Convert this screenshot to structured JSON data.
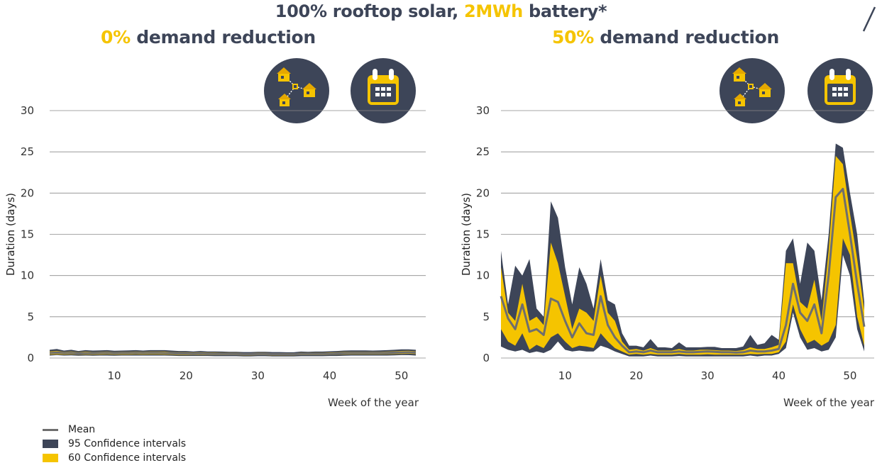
{
  "title": {
    "part1": "100% rooftop solar, ",
    "highlight": "2MWh",
    "part2": " battery*"
  },
  "colors": {
    "navy": "#3d4558",
    "yellow": "#f5c400",
    "mean": "#6e6e6e"
  },
  "icons": [
    "houses-network-icon",
    "calendar-icon"
  ],
  "legend": [
    {
      "label": "Mean",
      "kind": "line",
      "color": "#6e6e6e"
    },
    {
      "label": "95 Confidence intervals",
      "kind": "box",
      "color": "#3d4558"
    },
    {
      "label": "60 Confidence intervals",
      "kind": "box",
      "color": "#f5c400"
    }
  ],
  "chart_data": [
    {
      "type": "area",
      "subtitle_highlight": "0%",
      "subtitle_rest": " demand reduction",
      "xlabel": "Week of the year",
      "ylabel": "Duration (days)",
      "xlim": [
        1,
        52
      ],
      "ylim": [
        0,
        30
      ],
      "xticks": [
        10,
        20,
        30,
        40,
        50
      ],
      "yticks": [
        0,
        5,
        10,
        15,
        20,
        25,
        30
      ],
      "x_start": 1,
      "series": [
        {
          "name": "Mean",
          "values": [
            0.6,
            0.65,
            0.6,
            0.62,
            0.55,
            0.6,
            0.58,
            0.6,
            0.62,
            0.58,
            0.6,
            0.6,
            0.62,
            0.6,
            0.62,
            0.62,
            0.6,
            0.58,
            0.55,
            0.55,
            0.52,
            0.55,
            0.52,
            0.5,
            0.5,
            0.48,
            0.48,
            0.47,
            0.47,
            0.48,
            0.48,
            0.47,
            0.47,
            0.46,
            0.46,
            0.5,
            0.5,
            0.5,
            0.5,
            0.52,
            0.55,
            0.58,
            0.6,
            0.6,
            0.6,
            0.6,
            0.6,
            0.62,
            0.65,
            0.68,
            0.7,
            0.65
          ]
        },
        {
          "name": "95 Confidence intervals upper",
          "values": [
            1.0,
            1.1,
            0.9,
            1.0,
            0.85,
            0.95,
            0.9,
            0.92,
            0.95,
            0.88,
            0.9,
            0.92,
            0.95,
            0.9,
            0.95,
            0.95,
            0.95,
            0.9,
            0.85,
            0.85,
            0.8,
            0.85,
            0.8,
            0.8,
            0.78,
            0.75,
            0.75,
            0.72,
            0.72,
            0.75,
            0.75,
            0.72,
            0.72,
            0.7,
            0.7,
            0.78,
            0.75,
            0.78,
            0.78,
            0.82,
            0.85,
            0.9,
            0.92,
            0.92,
            0.92,
            0.9,
            0.92,
            0.95,
            1.0,
            1.05,
            1.05,
            1.0
          ]
        },
        {
          "name": "95 Confidence intervals lower",
          "values": [
            0.3,
            0.35,
            0.3,
            0.32,
            0.28,
            0.3,
            0.28,
            0.3,
            0.3,
            0.28,
            0.3,
            0.3,
            0.3,
            0.3,
            0.3,
            0.3,
            0.3,
            0.28,
            0.25,
            0.25,
            0.25,
            0.25,
            0.25,
            0.22,
            0.22,
            0.22,
            0.22,
            0.2,
            0.2,
            0.22,
            0.22,
            0.2,
            0.2,
            0.2,
            0.2,
            0.22,
            0.22,
            0.22,
            0.22,
            0.25,
            0.25,
            0.28,
            0.3,
            0.3,
            0.3,
            0.3,
            0.3,
            0.3,
            0.32,
            0.35,
            0.35,
            0.3
          ]
        },
        {
          "name": "60 Confidence intervals upper",
          "values": [
            0.8,
            0.85,
            0.75,
            0.8,
            0.7,
            0.78,
            0.72,
            0.75,
            0.78,
            0.72,
            0.75,
            0.75,
            0.78,
            0.75,
            0.78,
            0.78,
            0.78,
            0.72,
            0.7,
            0.7,
            0.66,
            0.7,
            0.66,
            0.65,
            0.64,
            0.62,
            0.62,
            0.6,
            0.6,
            0.62,
            0.62,
            0.6,
            0.6,
            0.58,
            0.58,
            0.64,
            0.62,
            0.64,
            0.64,
            0.68,
            0.7,
            0.74,
            0.76,
            0.76,
            0.76,
            0.75,
            0.76,
            0.78,
            0.82,
            0.86,
            0.88,
            0.82
          ]
        },
        {
          "name": "60 Confidence intervals lower",
          "values": [
            0.42,
            0.45,
            0.42,
            0.44,
            0.4,
            0.42,
            0.4,
            0.42,
            0.44,
            0.4,
            0.42,
            0.42,
            0.44,
            0.42,
            0.44,
            0.44,
            0.42,
            0.4,
            0.38,
            0.38,
            0.36,
            0.38,
            0.36,
            0.35,
            0.35,
            0.34,
            0.34,
            0.32,
            0.32,
            0.34,
            0.34,
            0.32,
            0.32,
            0.32,
            0.32,
            0.35,
            0.35,
            0.35,
            0.35,
            0.38,
            0.4,
            0.42,
            0.44,
            0.44,
            0.44,
            0.44,
            0.44,
            0.46,
            0.48,
            0.5,
            0.52,
            0.48
          ]
        }
      ]
    },
    {
      "type": "area",
      "subtitle_highlight": "50%",
      "subtitle_rest": " demand reduction",
      "xlabel": "Week of the year",
      "ylabel": "Duration (days)",
      "xlim": [
        1,
        52
      ],
      "ylim": [
        0,
        30
      ],
      "xticks": [
        10,
        20,
        30,
        40,
        50
      ],
      "yticks": [
        0,
        5,
        10,
        15,
        20,
        25,
        30
      ],
      "x_start": 1,
      "series": [
        {
          "name": "Mean",
          "values": [
            7.5,
            4.8,
            3.5,
            6.5,
            3.2,
            3.5,
            2.8,
            7.2,
            6.8,
            4.5,
            2.5,
            4.2,
            3.0,
            2.8,
            7.5,
            4.0,
            2.5,
            1.5,
            0.7,
            0.8,
            0.7,
            0.9,
            0.7,
            0.7,
            0.7,
            0.8,
            0.7,
            0.7,
            0.75,
            0.8,
            0.75,
            0.7,
            0.7,
            0.65,
            0.7,
            0.9,
            0.8,
            0.8,
            0.9,
            1.1,
            4.0,
            9.0,
            5.5,
            4.5,
            6.5,
            3.0,
            10.0,
            19.5,
            20.5,
            15.0,
            9.0,
            3.8
          ]
        },
        {
          "name": "95 Confidence intervals upper",
          "values": [
            13.0,
            6.5,
            11.2,
            10.0,
            12.0,
            6.0,
            5.0,
            19.0,
            17.0,
            11.0,
            6.5,
            11.0,
            9.0,
            6.0,
            12.0,
            7.0,
            6.5,
            3.0,
            1.5,
            1.5,
            1.3,
            2.3,
            1.3,
            1.3,
            1.2,
            1.9,
            1.3,
            1.3,
            1.3,
            1.35,
            1.35,
            1.2,
            1.2,
            1.2,
            1.4,
            2.8,
            1.6,
            1.8,
            2.8,
            2.2,
            13.0,
            14.5,
            9.0,
            14.0,
            13.0,
            7.0,
            15.0,
            26.0,
            25.5,
            20.0,
            15.0,
            6.8
          ]
        },
        {
          "name": "95 Confidence intervals lower",
          "values": [
            1.4,
            1.0,
            0.8,
            1.0,
            0.6,
            0.8,
            0.6,
            1.0,
            2.0,
            1.0,
            0.8,
            0.9,
            0.8,
            0.8,
            1.5,
            1.2,
            0.8,
            0.5,
            0.2,
            0.2,
            0.2,
            0.3,
            0.2,
            0.2,
            0.2,
            0.25,
            0.2,
            0.2,
            0.2,
            0.2,
            0.2,
            0.2,
            0.2,
            0.2,
            0.2,
            0.3,
            0.2,
            0.3,
            0.3,
            0.5,
            1.2,
            5.5,
            2.5,
            1.0,
            1.2,
            0.8,
            1.0,
            2.5,
            12.5,
            10.0,
            3.5,
            0.8
          ]
        },
        {
          "name": "60 Confidence intervals upper",
          "values": [
            11.0,
            5.5,
            4.5,
            9.0,
            4.5,
            5.0,
            4.0,
            14.0,
            11.5,
            7.5,
            3.5,
            6.0,
            5.5,
            4.5,
            10.0,
            5.5,
            4.5,
            2.0,
            1.0,
            1.1,
            0.9,
            1.2,
            0.9,
            0.9,
            0.9,
            1.1,
            0.9,
            0.9,
            1.0,
            1.0,
            0.95,
            0.9,
            0.9,
            0.85,
            0.95,
            1.3,
            1.1,
            1.1,
            1.3,
            1.6,
            11.5,
            11.5,
            6.8,
            6.0,
            9.5,
            4.5,
            13.0,
            24.5,
            23.5,
            17.5,
            12.0,
            5.8
          ]
        },
        {
          "name": "60 Confidence intervals lower",
          "values": [
            3.5,
            2.0,
            1.5,
            3.0,
            1.0,
            1.6,
            1.2,
            2.5,
            3.0,
            2.0,
            1.2,
            1.5,
            1.4,
            1.2,
            3.0,
            2.0,
            1.2,
            0.8,
            0.4,
            0.5,
            0.4,
            0.5,
            0.4,
            0.4,
            0.4,
            0.5,
            0.4,
            0.4,
            0.4,
            0.45,
            0.4,
            0.4,
            0.4,
            0.4,
            0.4,
            0.5,
            0.45,
            0.5,
            0.5,
            0.7,
            2.0,
            6.5,
            3.5,
            1.8,
            2.2,
            1.5,
            2.0,
            4.0,
            14.5,
            12.5,
            5.0,
            1.5
          ]
        }
      ]
    }
  ]
}
